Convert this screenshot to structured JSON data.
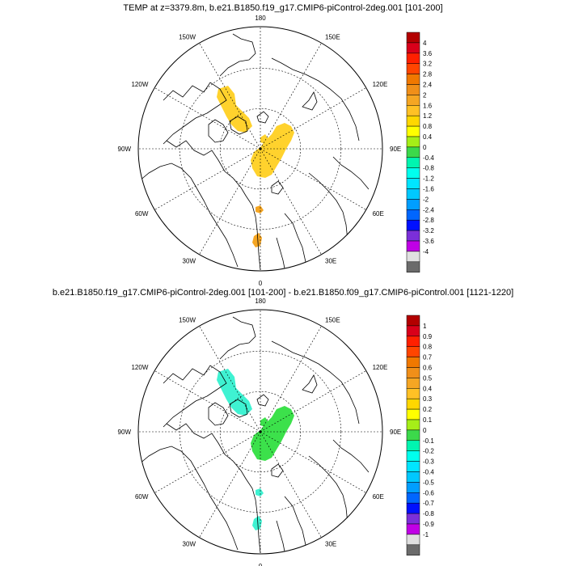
{
  "panels": [
    {
      "title": "TEMP at z=3379.8m, b.e21.B1850.f19_g17.CMIP6-piControl-2deg.001 [101-200]",
      "lon_labels": {
        "top": "180",
        "bottom": "0",
        "upper_left": "150W",
        "upper_right": "150E",
        "left_upper": "120W",
        "right_upper": "120E",
        "left": "90W",
        "right": "90E",
        "left_lower": "60W",
        "right_lower": "60E",
        "lower_left": "30W",
        "lower_right": "30E"
      },
      "colorbar": {
        "labels": [
          "4",
          "3.6",
          "3.2",
          "2.8",
          "2.4",
          "2",
          "1.6",
          "1.2",
          "0.8",
          "0.4",
          "0",
          "-0.4",
          "-0.8",
          "-1.2",
          "-1.6",
          "-2",
          "-2.4",
          "-2.8",
          "-3.2",
          "-3.6",
          "-4"
        ],
        "colors": [
          "#b30000",
          "#d9001a",
          "#ff2000",
          "#ff4500",
          "#f07800",
          "#f08f19",
          "#f5a623",
          "#ffc125",
          "#ffd700",
          "#ffff00",
          "#a6ee18",
          "#3cd94b",
          "#00f5b0",
          "#00ffee",
          "#00e5ff",
          "#00c8ff",
          "#009eff",
          "#0066ff",
          "#0010ff",
          "#7b2fd9",
          "#c000e6",
          "#e0e0e0",
          "#6b6b6b"
        ]
      },
      "anomaly_colors": {
        "alaska_patch": "#ffd22d",
        "siberia_patch": "#ffd22d",
        "atlantic_patch": "#f5a623"
      }
    },
    {
      "title": "b.e21.B1850.f19_g17.CMIP6-piControl-2deg.001 [101-200] - b.e21.B1850.f09_g17.CMIP6-piControl.001 [1121-1220]",
      "lon_labels": {
        "top": "180",
        "bottom": "0",
        "upper_left": "150W",
        "upper_right": "150E",
        "left_upper": "120W",
        "right_upper": "120E",
        "left": "90W",
        "right": "90E",
        "left_lower": "60W",
        "right_lower": "60E",
        "lower_left": "30W",
        "lower_right": "30E"
      },
      "colorbar": {
        "labels": [
          "1",
          "0.9",
          "0.8",
          "0.7",
          "0.6",
          "0.5",
          "0.4",
          "0.3",
          "0.2",
          "0.1",
          "0",
          "-0.1",
          "-0.2",
          "-0.3",
          "-0.4",
          "-0.5",
          "-0.6",
          "-0.7",
          "-0.8",
          "-0.9",
          "-1"
        ],
        "colors": [
          "#b30000",
          "#d9001a",
          "#ff2000",
          "#ff4500",
          "#f07800",
          "#f08f19",
          "#f5a623",
          "#ffc125",
          "#ffd700",
          "#ffff00",
          "#a6ee18",
          "#3cd94b",
          "#00f5b0",
          "#00ffee",
          "#00e5ff",
          "#00c8ff",
          "#009eff",
          "#0066ff",
          "#0010ff",
          "#7b2fd9",
          "#c000e6",
          "#e0e0e0",
          "#6b6b6b"
        ]
      },
      "anomaly_colors": {
        "alaska_patch": "#3ff2d2",
        "siberia_patch": "#3ce14b",
        "atlantic_patch": "#3ff2d2"
      }
    }
  ]
}
